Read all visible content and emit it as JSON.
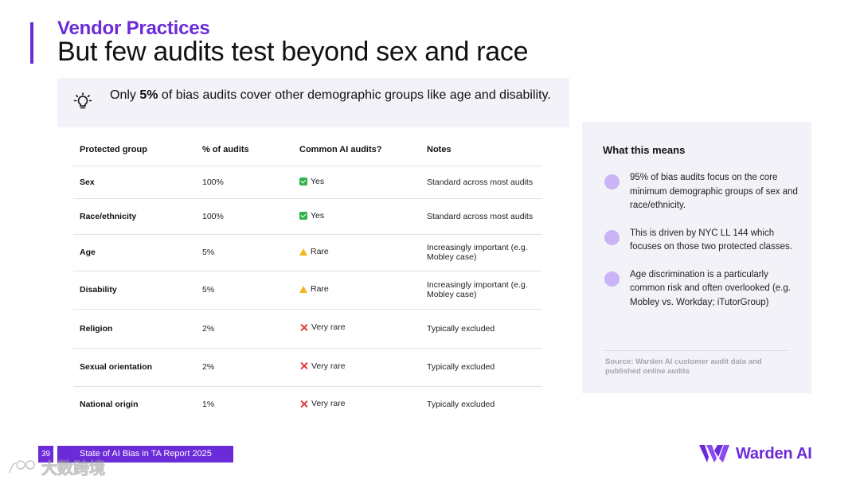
{
  "header": {
    "kicker": "Vendor Practices",
    "title": "But few audits test beyond sex and race"
  },
  "callout": {
    "pre": "Only ",
    "highlight": "5%",
    "post": " of bias audits cover other demographic groups like age and disability.",
    "icon": "lightbulb-icon"
  },
  "table": {
    "headers": [
      "Protected group",
      "% of audits",
      "Common AI audits?",
      "Notes"
    ],
    "rows": [
      {
        "group": "Sex",
        "percent": "100%",
        "status": "Yes",
        "status_icon": "check-icon",
        "note": "Standard across most audits"
      },
      {
        "group": "Race/ethnicity",
        "percent": "100%",
        "status": "Yes",
        "status_icon": "check-icon",
        "note": "Standard across most audits"
      },
      {
        "group": "Age",
        "percent": "5%",
        "status": "Rare",
        "status_icon": "warning-icon",
        "note": "Increasingly important (e.g. Mobley case)"
      },
      {
        "group": "Disability",
        "percent": "5%",
        "status": "Rare",
        "status_icon": "warning-icon",
        "note": "Increasingly important (e.g. Mobley case)"
      },
      {
        "group": "Religion",
        "percent": "2%",
        "status": "Very rare",
        "status_icon": "x-icon",
        "note": "Typically excluded"
      },
      {
        "group": "Sexual orientation",
        "percent": "2%",
        "status": "Very rare",
        "status_icon": "x-icon",
        "note": "Typically excluded"
      },
      {
        "group": "National origin",
        "percent": "1%",
        "status": "Very rare",
        "status_icon": "x-icon",
        "note": "Typically excluded"
      }
    ]
  },
  "side_panel": {
    "title": "What this means",
    "points": [
      "95% of bias audits focus on the core minimum demographic groups of sex and race/ethnicity.",
      "This is driven by NYC LL 144 which focuses on those two protected classes.",
      "Age discrimination is a particularly common risk and often overlooked (e.g. Mobley vs. Workday; iTutorGroup)"
    ],
    "source": "Source: Warden AI customer audit data and published online audits"
  },
  "footer": {
    "page_number": "39",
    "report_title": "State of AI Bias in TA Report 2025"
  },
  "logo": {
    "name": "Warden AI"
  },
  "watermark": {
    "text": "大数跨境"
  },
  "colors": {
    "accent": "#6b2bd9",
    "panel": "#f3f2f8",
    "dot": "#c9b4f5",
    "yes": "#2fb34a",
    "warn": "#f2b51d",
    "no": "#e23b3b"
  }
}
